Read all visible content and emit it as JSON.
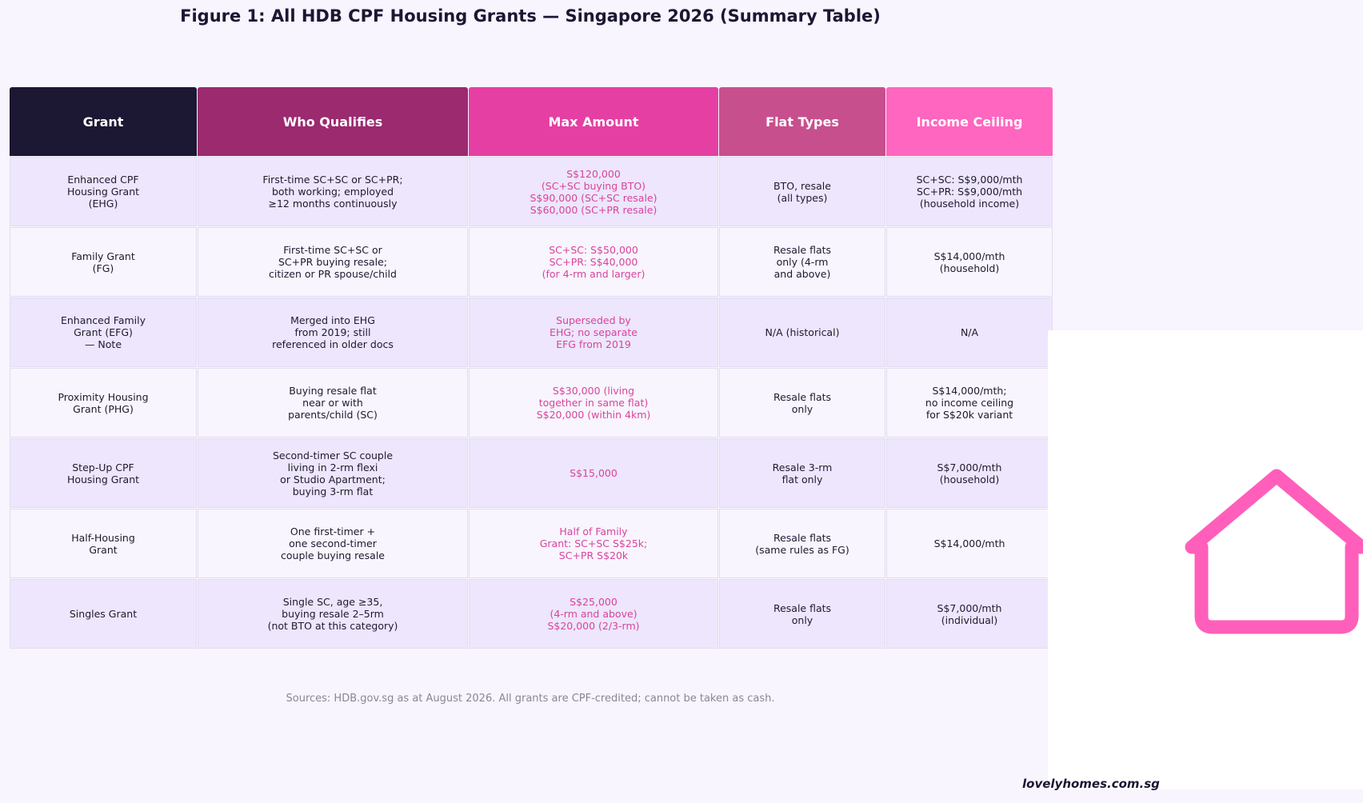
{
  "title": "Figure 1: All HDB CPF Housing Grants — Singapore 2026 (Summary Table)",
  "chart_data": {
    "type": "table",
    "header_colors": [
      "#1c1733",
      "#9b2a6f",
      "#e53fa3",
      "#c84f8d",
      "#ff66bf"
    ],
    "row_colors": [
      "#ede6fc",
      "#f8f5fe"
    ],
    "amount_color": "#d9439d",
    "columns": [
      "Grant",
      "Who Qualifies",
      "Max Amount",
      "Flat Types",
      "Income Ceiling"
    ],
    "rows": [
      [
        "Enhanced CPF\nHousing Grant\n(EHG)",
        "First-time SC+SC or SC+PR;\nboth working; employed\n≥12 months continuously",
        "S$120,000\n(SC+SC buying BTO)\nS$90,000 (SC+SC resale)\nS$60,000 (SC+PR resale)",
        "BTO, resale\n(all types)",
        "SC+SC: S$9,000/mth\nSC+PR: S$9,000/mth\n(household income)"
      ],
      [
        "Family Grant\n(FG)",
        "First-time SC+SC or\nSC+PR buying resale;\ncitizen or PR spouse/child",
        "SC+SC: S$50,000\nSC+PR: S$40,000\n(for 4-rm and larger)",
        "Resale flats\nonly (4-rm\nand above)",
        "S$14,000/mth\n(household)"
      ],
      [
        "Enhanced Family\nGrant (EFG)\n— Note",
        "Merged into EHG\nfrom 2019; still\nreferenced in older docs",
        "Superseded by\nEHG; no separate\nEFG from 2019",
        "N/A (historical)",
        "N/A"
      ],
      [
        "Proximity Housing\nGrant (PHG)",
        "Buying resale flat\nnear or with\nparents/child (SC)",
        "S$30,000 (living\ntogether in same flat)\nS$20,000 (within 4km)",
        "Resale flats\nonly",
        "S$14,000/mth;\nno income ceiling\nfor S$20k variant"
      ],
      [
        "Step-Up CPF\nHousing Grant",
        "Second-timer SC couple\nliving in 2-rm flexi\nor Studio Apartment;\nbuying 3-rm flat",
        "S$15,000",
        "Resale 3-rm\nflat only",
        "S$7,000/mth\n(household)"
      ],
      [
        "Half-Housing\nGrant",
        "One first-timer +\none second-timer\ncouple buying resale",
        "Half of Family\nGrant: SC+SC S$25k;\nSC+PR S$20k",
        "Resale flats\n(same rules as FG)",
        "S$14,000/mth"
      ],
      [
        "Singles Grant",
        "Single SC, age ≥35,\nbuying resale 2–5rm\n(not BTO at this category)",
        "S$25,000\n(4-rm and above)\nS$20,000 (2/3-rm)",
        "Resale flats\nonly",
        "S$7,000/mth\n(individual)"
      ]
    ]
  },
  "source_note": "Sources: HDB.gov.sg as at August 2026. All grants are CPF-credited; cannot be taken as cash.",
  "brand": "lovelyhomes.com.sg",
  "icon": "house-icon",
  "icon_color": "#ff5fbb"
}
